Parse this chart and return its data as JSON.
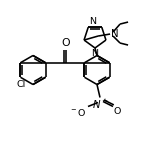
{
  "bg_color": "#ffffff",
  "line_color": "#000000",
  "lw": 1.15,
  "fs": 6.8,
  "figsize": [
    1.6,
    1.49
  ],
  "dpi": 100,
  "xlim": [
    0,
    160
  ],
  "ylim": [
    0,
    149
  ]
}
